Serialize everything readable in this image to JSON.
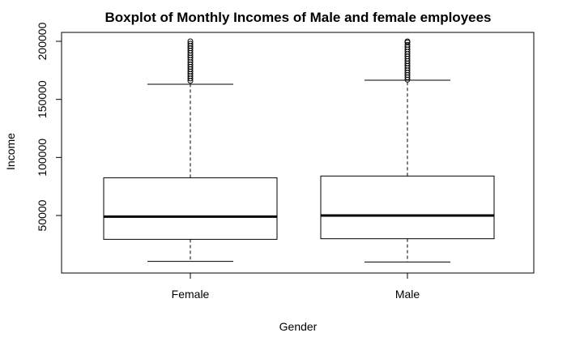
{
  "chart_data": {
    "type": "boxplot",
    "title": "Boxplot of Monthly Incomes of Male and female employees",
    "xlabel": "Gender",
    "ylabel": "Income",
    "ylim": [
      0,
      210000
    ],
    "yticks": [
      50000,
      100000,
      150000,
      200000
    ],
    "ytick_labels": [
      "50000",
      "100000",
      "150000",
      "200000"
    ],
    "grid": false,
    "categories": [
      "Female",
      "Male"
    ],
    "boxes": [
      {
        "category": "Female",
        "whisker_low": 10500,
        "q1": 29500,
        "median": 49000,
        "q3": 82500,
        "whisker_high": 163000,
        "outliers": [
          166000,
          168000,
          170000,
          172000,
          174000,
          176000,
          178000,
          180000,
          182000,
          184000,
          186000,
          188000,
          190000,
          192000,
          194000,
          196000,
          198000,
          200000
        ]
      },
      {
        "category": "Male",
        "whisker_low": 10000,
        "q1": 30000,
        "median": 50000,
        "q3": 84000,
        "whisker_high": 166500,
        "outliers": [
          167000,
          169000,
          171000,
          173000,
          175000,
          177000,
          179000,
          181000,
          183000,
          185000,
          187000,
          189000,
          191000,
          193000,
          195000,
          197000,
          199000,
          200000
        ]
      }
    ]
  }
}
